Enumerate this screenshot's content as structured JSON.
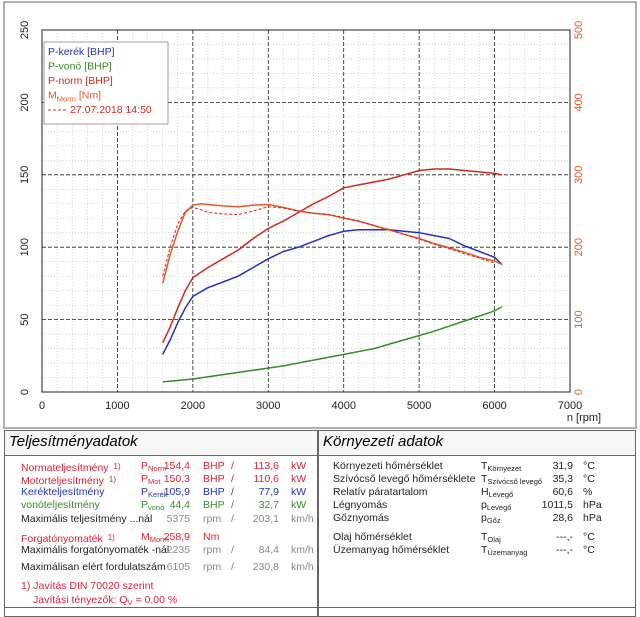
{
  "chart_data": {
    "type": "line",
    "xlabel": "n [rpm]",
    "xlim": [
      0,
      7000
    ],
    "xticks": [
      0,
      1000,
      2000,
      3000,
      4000,
      5000,
      6000,
      7000
    ],
    "ylim_left": [
      0,
      250
    ],
    "yticks_left": [
      0,
      50,
      100,
      150,
      200,
      250
    ],
    "ylim_right": [
      0,
      500
    ],
    "yticks_right": [
      0,
      100,
      200,
      300,
      400,
      500
    ],
    "grid": true,
    "legend_position": "top-left",
    "legend": [
      "P-kerék [BHP]",
      "P-vonó [BHP]",
      "P-norm [BHP]",
      "M_Morm [Nm]",
      "27.07.2018 14:50"
    ],
    "series": [
      {
        "name": "P-kerék [BHP]",
        "axis": "left",
        "color": "#2233bb",
        "x": [
          1600,
          1700,
          1800,
          1900,
          2000,
          2200,
          2400,
          2600,
          2800,
          3000,
          3200,
          3400,
          3600,
          3800,
          4000,
          4200,
          4400,
          4600,
          4800,
          5000,
          5200,
          5400,
          5600,
          5800,
          6000,
          6100
        ],
        "y": [
          26,
          36,
          48,
          58,
          66,
          72,
          76,
          80,
          86,
          92,
          97,
          100,
          104,
          108,
          111,
          112,
          112,
          112,
          111,
          110,
          108,
          106,
          101,
          97,
          93,
          88
        ]
      },
      {
        "name": "P-vonó [BHP]",
        "axis": "left",
        "color": "#3a8a2a",
        "x": [
          1600,
          2000,
          2400,
          2800,
          3200,
          3600,
          4000,
          4400,
          4800,
          5200,
          5600,
          6000,
          6100
        ],
        "y": [
          7,
          9,
          12,
          15,
          18,
          22,
          26,
          30,
          36,
          42,
          49,
          56,
          59
        ]
      },
      {
        "name": "P-norm [BHP]",
        "axis": "left",
        "color": "#cc2a1a",
        "x": [
          1600,
          1700,
          1800,
          1900,
          2000,
          2200,
          2400,
          2600,
          2800,
          3000,
          3200,
          3400,
          3600,
          3800,
          4000,
          4200,
          4400,
          4600,
          4800,
          5000,
          5200,
          5400,
          5600,
          5800,
          6000,
          6100
        ],
        "y": [
          34,
          45,
          58,
          70,
          79,
          86,
          92,
          98,
          106,
          113,
          118,
          124,
          130,
          135,
          141,
          143,
          145,
          147,
          150,
          153,
          154,
          154,
          153,
          152,
          151,
          150
        ]
      },
      {
        "name": "M_Morm [Nm]",
        "axis": "right",
        "color": "#e05a2a",
        "x": [
          1600,
          1700,
          1800,
          1900,
          2000,
          2100,
          2200,
          2400,
          2600,
          2800,
          3000,
          3200,
          3400,
          3600,
          3800,
          4000,
          4200,
          4400,
          4600,
          4800,
          5000,
          5200,
          5400,
          5600,
          5800,
          6000,
          6100
        ],
        "y": [
          150,
          190,
          222,
          248,
          258,
          260,
          259,
          257,
          256,
          258,
          259,
          255,
          250,
          247,
          245,
          240,
          236,
          230,
          224,
          218,
          212,
          205,
          199,
          193,
          186,
          181,
          176
        ]
      },
      {
        "name": "27.07.2018 14:50",
        "axis": "right",
        "color": "#cc2a1a",
        "dash": true,
        "x": [
          1600,
          1700,
          1800,
          1900,
          2000,
          2100,
          2200,
          2400,
          2600,
          2800,
          3000,
          3200,
          3400,
          3600,
          3800,
          4000,
          4200,
          4400,
          4600,
          4800,
          5000,
          5200,
          5400,
          5600,
          5800,
          6000
        ],
        "y": [
          160,
          200,
          232,
          250,
          255,
          252,
          248,
          246,
          245,
          250,
          256,
          254,
          250,
          247,
          245,
          241,
          236,
          230,
          224,
          218,
          211,
          204,
          198,
          191,
          185,
          178
        ]
      }
    ]
  },
  "left_panel": {
    "title": "Teljesítményadatok",
    "rows": [
      {
        "label": "Normateljesítmény",
        "note": "1)",
        "sym": "P",
        "sub": "Norm",
        "v1": "154,4",
        "u1": "BHP",
        "sep": "/",
        "v2": "113,6",
        "u2": "kW",
        "color": "red"
      },
      {
        "label": "Motorteljesítmény",
        "note": "1)",
        "sym": "P",
        "sub": "Mot",
        "v1": "150,3",
        "u1": "BHP",
        "sep": "/",
        "v2": "110,6",
        "u2": "kW",
        "color": "red"
      },
      {
        "label": "Kerékteljesítmény",
        "note": "",
        "sym": "P",
        "sub": "Kerék",
        "v1": "105,9",
        "u1": "BHP",
        "sep": "/",
        "v2": "77,9",
        "u2": "kW",
        "color": "blue"
      },
      {
        "label": "vonóteljesítmény",
        "note": "",
        "sym": "P",
        "sub": "vonó",
        "v1": "44,4",
        "u1": "BHP",
        "sep": "/",
        "v2": "32,7",
        "u2": "kW",
        "color": "green"
      },
      {
        "label": "Maximális teljesítmény ...nál",
        "note": "",
        "sym": "",
        "sub": "",
        "v1": "5375",
        "u1": "rpm",
        "sep": "/",
        "v2": "203,1",
        "u2": "km/h",
        "color": "black"
      },
      {
        "label": "Forgatónyomaték",
        "note": "1)",
        "sym": "M",
        "sub": "Morm",
        "v1": "258,9",
        "u1": "Nm",
        "sep": "",
        "v2": "",
        "u2": "",
        "color": "red"
      },
      {
        "label": "Maximális forgatónyomaték -nál",
        "note": "",
        "sym": "",
        "sub": "",
        "v1": "2235",
        "u1": "rpm",
        "sep": "/",
        "v2": "84,4",
        "u2": "km/h",
        "color": "black"
      },
      {
        "label": "Maximálisan elért fordulatszám",
        "note": "",
        "sym": "",
        "sub": "",
        "v1": "6105",
        "u1": "rpm",
        "sep": "/",
        "v2": "230,8",
        "u2": "km/h",
        "color": "black"
      }
    ],
    "footnote1": "1) Javítás DIN 70020 szerint",
    "footnote2": "Javítási tényezők: Q",
    "footnote2_sub": "V",
    "footnote2_val": " =   0,00 %"
  },
  "right_panel": {
    "title": "Környezeti adatok",
    "rows": [
      {
        "label": "Környezeti hőmérséklet",
        "sym": "T",
        "sub": "Környezet",
        "val": "31,9",
        "unit": "°C"
      },
      {
        "label": "Szívócső levegő hőmérséklete",
        "sym": "T",
        "sub": "Szívócső levegő",
        "val": "35,3",
        "unit": "°C"
      },
      {
        "label": "Relatív páratartalom",
        "sym": "H",
        "sub": "Levegő",
        "val": "60,6",
        "unit": "%"
      },
      {
        "label": "Légnyomás",
        "sym": "p",
        "sub": "Levegő",
        "val": "1011,5",
        "unit": "hPa"
      },
      {
        "label": "Gőznyomás",
        "sym": "p",
        "sub": "Gőz",
        "val": "28,6",
        "unit": "hPa"
      },
      {
        "label": "Olaj hőmérséklet",
        "sym": "T",
        "sub": "Olaj",
        "val": "---,-",
        "unit": "°C"
      },
      {
        "label": "Üzemanyag hőmérséklet",
        "sym": "T",
        "sub": "Üzemanyag",
        "val": "---,-",
        "unit": "°C"
      }
    ]
  }
}
